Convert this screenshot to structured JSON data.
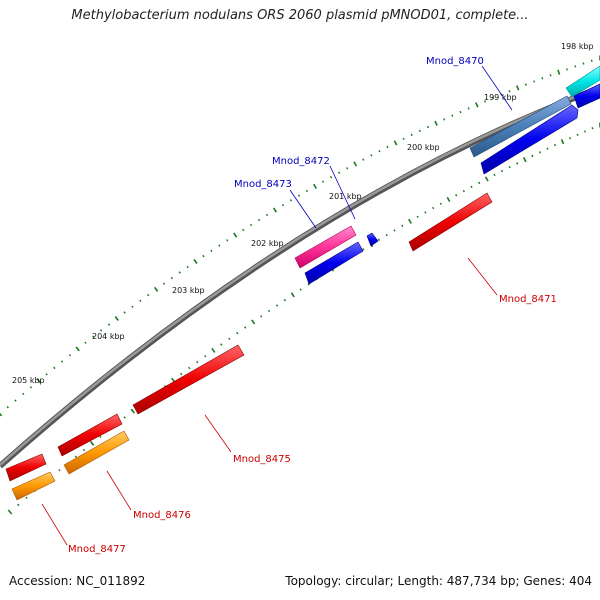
{
  "title": "Methylobacterium nodulans ORS 2060 plasmid pMNOD01, complete...",
  "footer": {
    "accession": "Accession: NC_011892",
    "topology": "Topology: circular; Length: 487,734 bp; Genes: 404"
  },
  "kbp_labels": [
    "198 kbp",
    "199 kbp",
    "200 kbp",
    "201 kbp",
    "202 kbp",
    "203 kbp",
    "204 kbp",
    "205 kbp"
  ],
  "gene_labels": [
    "Mnod_8470",
    "Mnod_8472",
    "Mnod_8473",
    "Mnod_8471",
    "Mnod_8475",
    "Mnod_8476",
    "Mnod_8477"
  ],
  "colors": {
    "backbone": "#808080",
    "tick": "#1a7a1a",
    "forward_cds": "#0000ee",
    "reverse_cds": "#ee0000",
    "orange": "#ff9900",
    "pink": "#ff3399",
    "steelblue": "#4a80b8",
    "cyan": "#00e5e5"
  }
}
